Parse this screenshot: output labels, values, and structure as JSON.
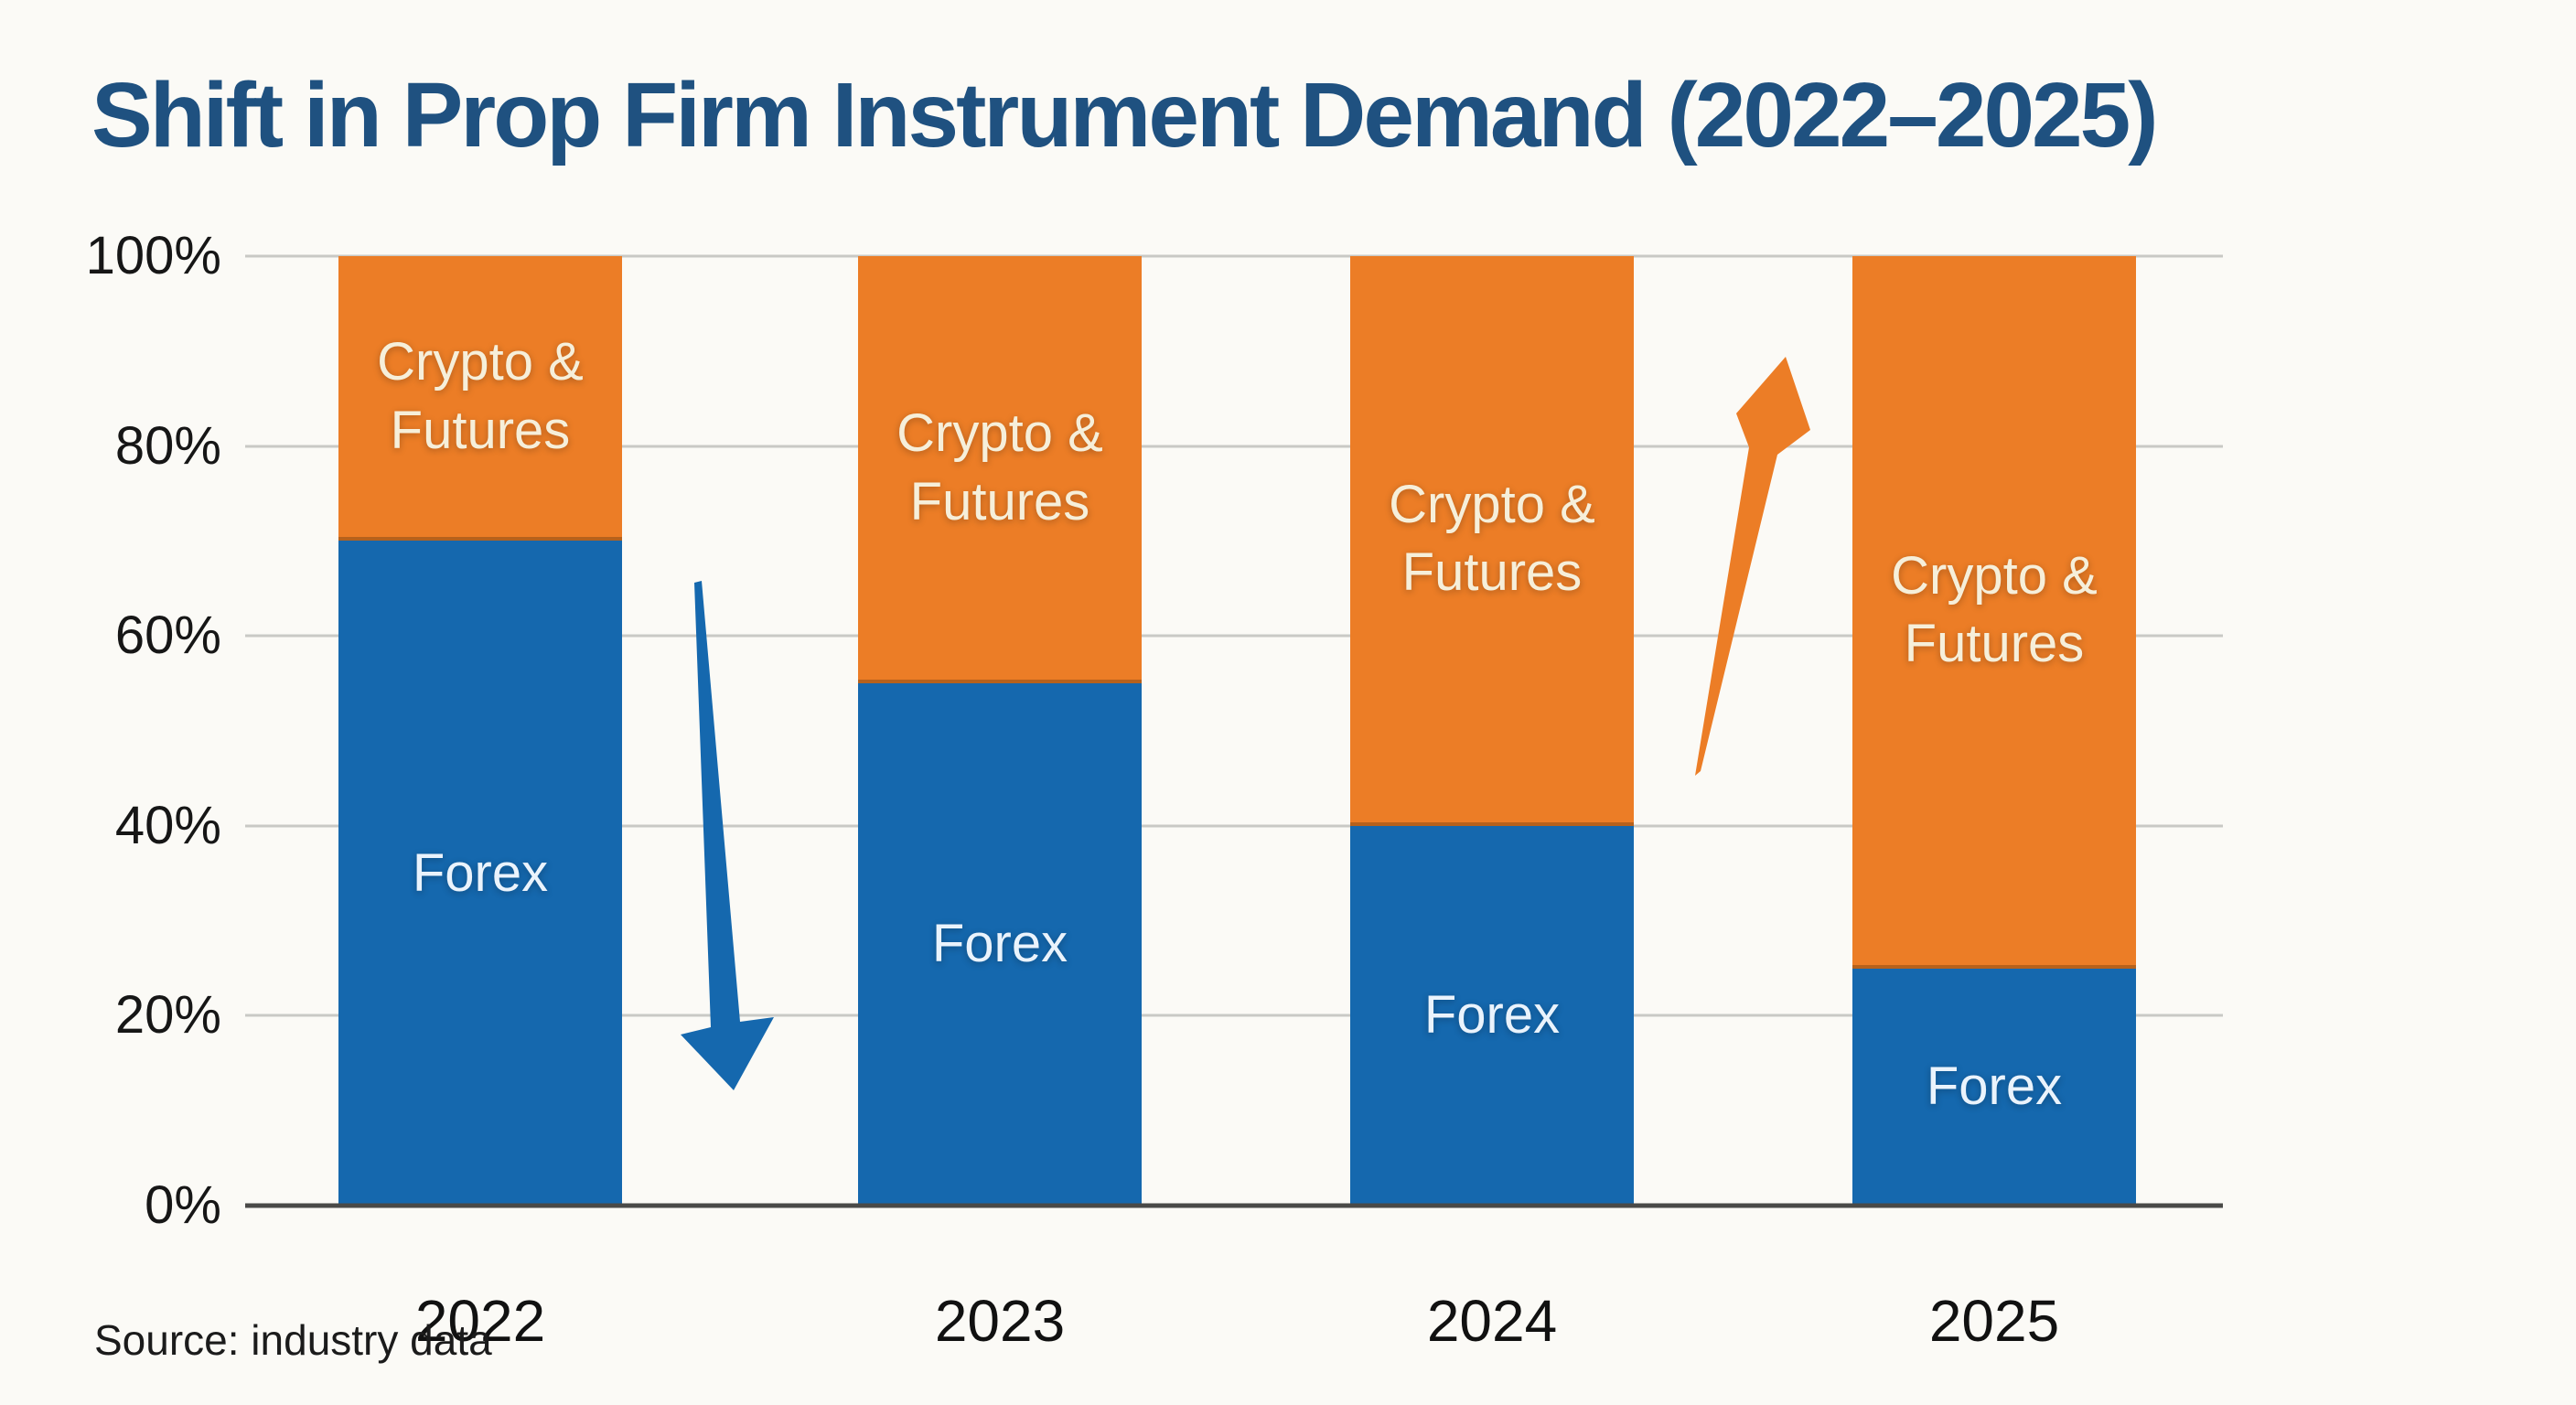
{
  "title": "Shift in Prop Firm Instrument Demand (2022–2025)",
  "source_note": "Source: industry data",
  "colors": {
    "background": "#FBFAF6",
    "title_text": "#1F5180",
    "gridline": "#C9C9C5",
    "axis_line": "#4A4A48",
    "tick_label": "#161616",
    "source_text": "#1B1B1B"
  },
  "chart_data": {
    "type": "bar",
    "stacked": true,
    "units": "percent",
    "title": "Shift in Prop Firm Instrument Demand (2022–2025)",
    "xlabel": "",
    "ylabel": "",
    "categories": [
      "2022",
      "2023",
      "2024",
      "2025"
    ],
    "series": [
      {
        "name": "Forex",
        "values": [
          70,
          55,
          40,
          25
        ],
        "color": "#1568AE",
        "label_color": "#EAF3FC"
      },
      {
        "name": "Crypto & Futures",
        "values": [
          30,
          45,
          60,
          75
        ],
        "color": "#EC7D26",
        "label_color": "#F6EFDA"
      }
    ],
    "ylim": [
      0,
      100
    ],
    "yticks": [
      0,
      20,
      40,
      60,
      80,
      100
    ],
    "ytick_format": "{v}%",
    "grid": true,
    "legend_position": "none (series labeled inside bar segments)",
    "annotations": [
      {
        "name": "forex-decline-arrow",
        "direction": "down",
        "color": "#1568AE",
        "between_categories": [
          "2022",
          "2023"
        ],
        "meaning": "Forex share declining"
      },
      {
        "name": "crypto-growth-arrow",
        "direction": "up",
        "color": "#EC7D26",
        "between_categories": [
          "2024",
          "2025"
        ],
        "meaning": "Crypto & Futures share rising"
      }
    ]
  }
}
